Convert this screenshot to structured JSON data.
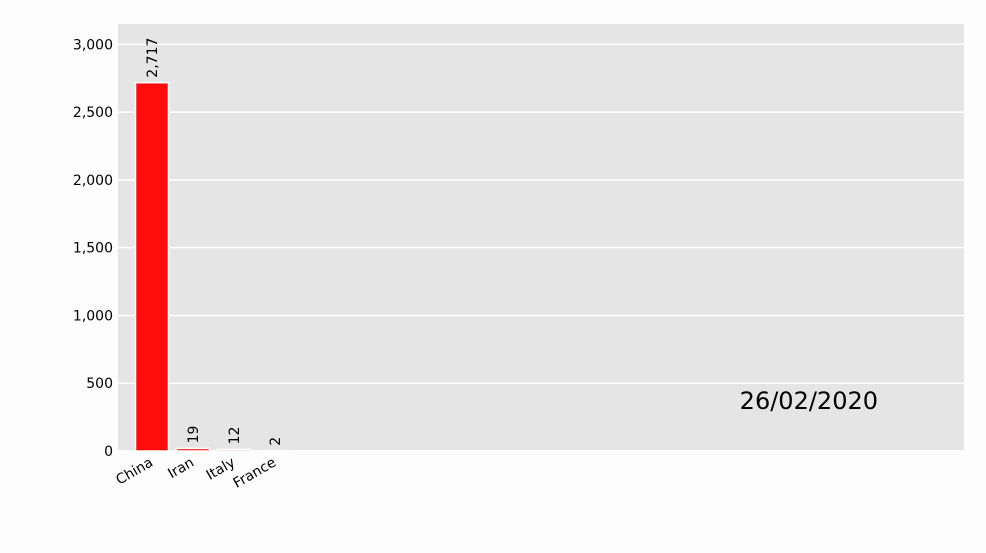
{
  "chart_data": {
    "type": "bar",
    "title": "",
    "xlabel": "",
    "ylabel": "",
    "categories": [
      "China",
      "Iran",
      "Italy",
      "France"
    ],
    "values": [
      2717,
      19,
      12,
      2
    ],
    "value_labels": [
      "2,717",
      "19",
      "12",
      "2"
    ],
    "ylim": [
      0,
      3150
    ],
    "yticks": [
      0,
      500,
      1000,
      1500,
      2000,
      2500,
      3000
    ],
    "ytick_labels": [
      "0",
      "500",
      "1,000",
      "1,500",
      "2,000",
      "2,500",
      "3,000"
    ],
    "grid": true,
    "legend": "none",
    "date": "26/02/2020",
    "colors": {
      "bar": "#ff0d0d",
      "plot_background": "#e5e5e5",
      "gridline": "#ffffff",
      "page_background": "#fdfdfd"
    }
  }
}
